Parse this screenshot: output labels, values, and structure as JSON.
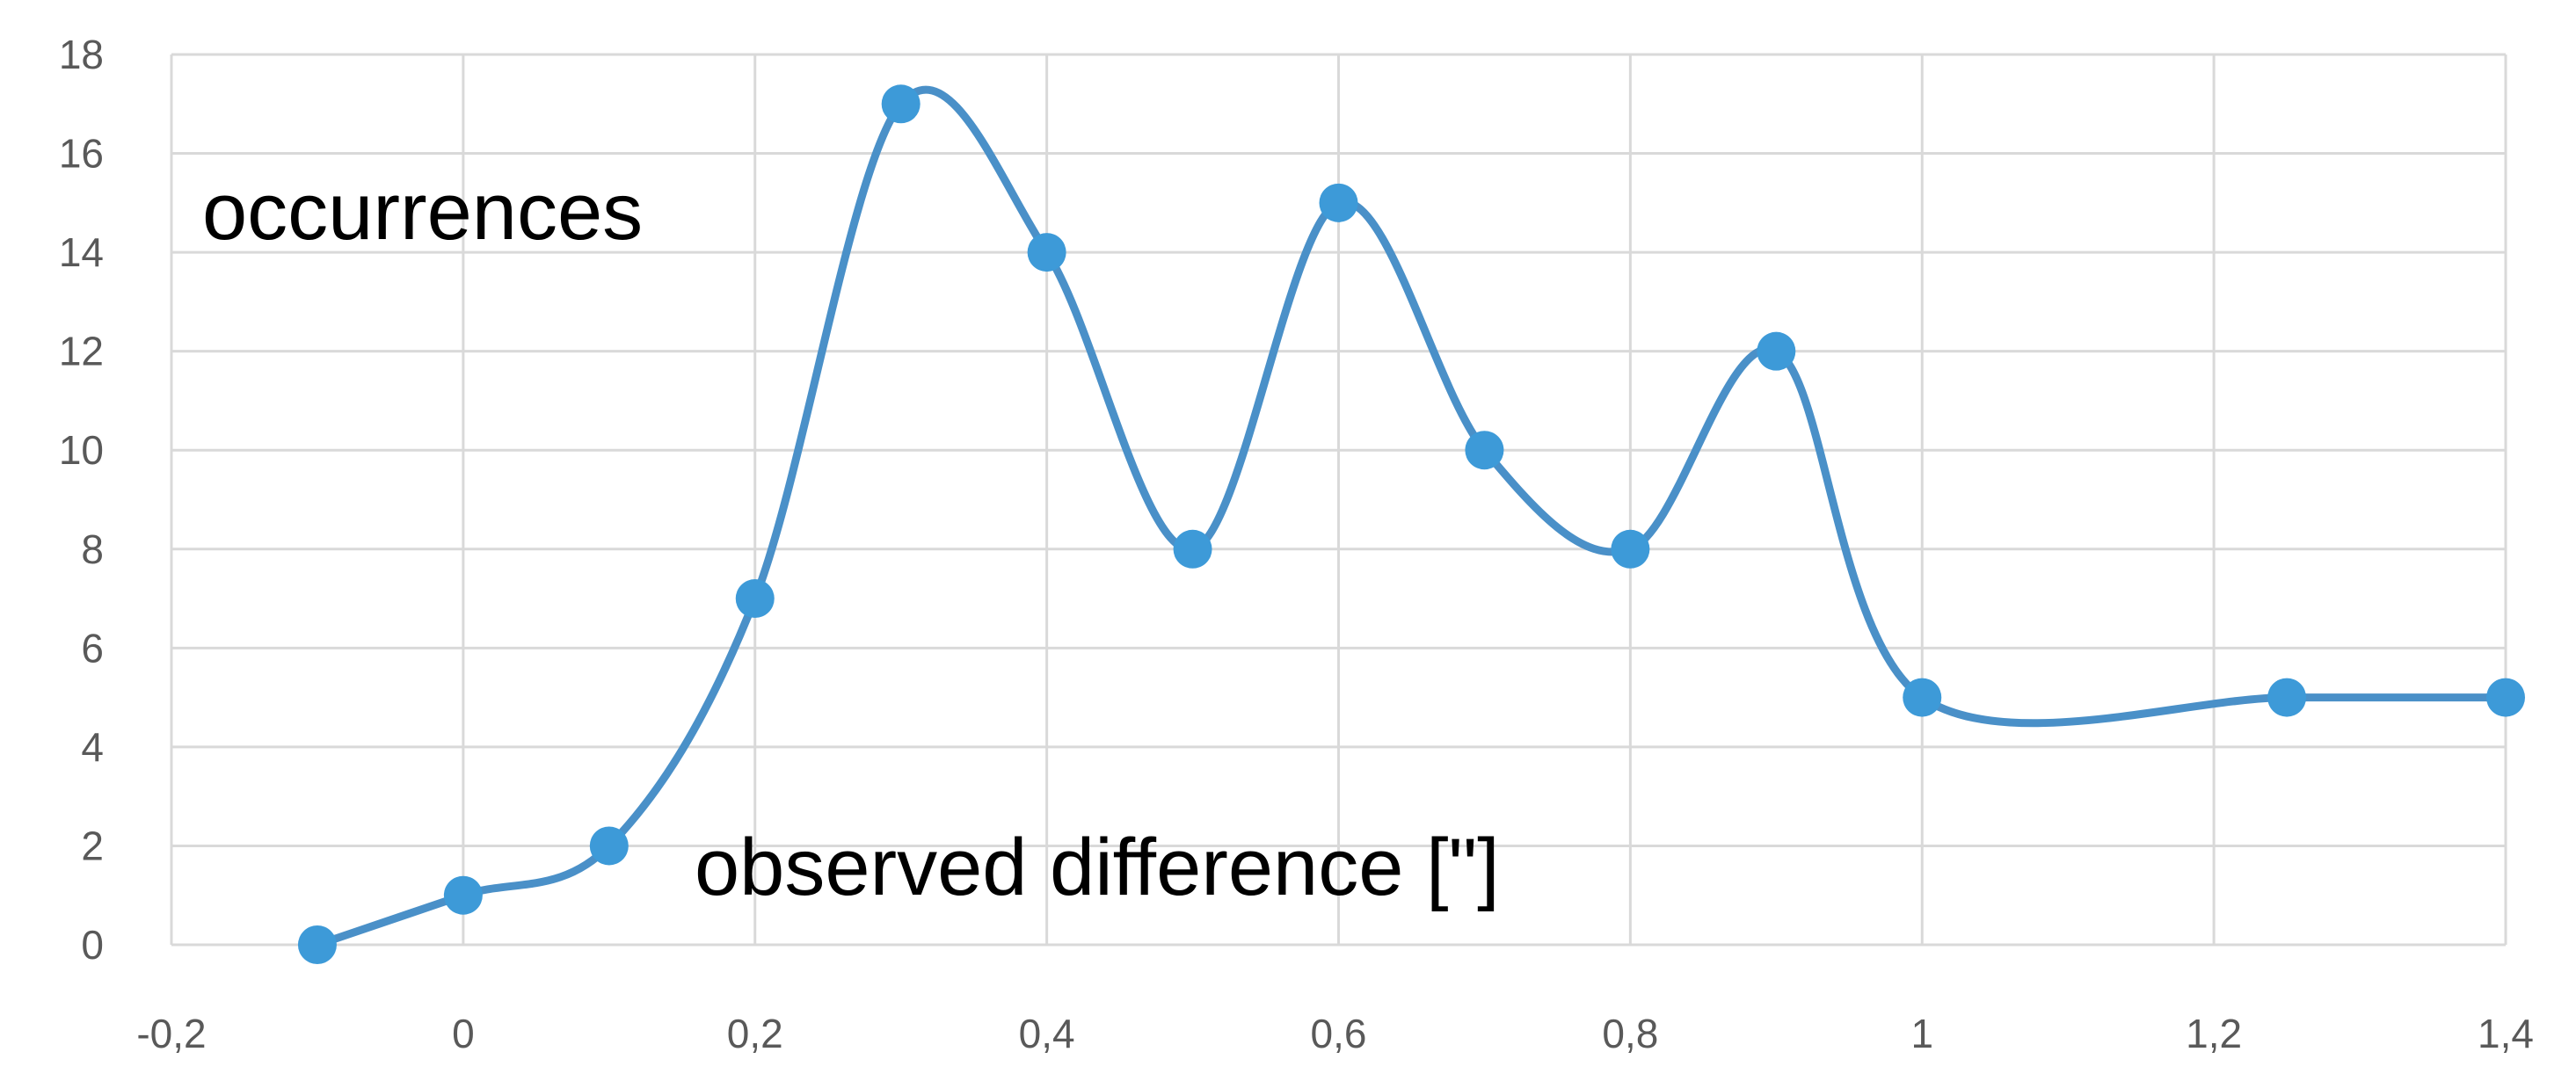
{
  "chart_data": {
    "type": "line",
    "smooth": true,
    "x": [
      -0.1,
      0,
      0.1,
      0.2,
      0.3,
      0.4,
      0.5,
      0.6,
      0.7,
      0.8,
      0.9,
      1.0,
      1.25,
      1.4
    ],
    "series": [
      {
        "values": [
          0,
          1,
          2,
          7,
          17,
          14,
          8,
          15,
          10,
          8,
          12,
          5,
          5,
          5
        ]
      }
    ],
    "xlim": [
      -0.2,
      1.4
    ],
    "ylim": [
      0,
      18
    ],
    "x_ticks": [
      "-0,2",
      "0",
      "0,2",
      "0,4",
      "0,6",
      "0,8",
      "1",
      "1,2",
      "1,4"
    ],
    "y_ticks": [
      "0",
      "2",
      "4",
      "6",
      "8",
      "10",
      "12",
      "14",
      "16",
      "18"
    ],
    "annotations": [
      "occurrences",
      "observed difference [\"]"
    ],
    "grid": true,
    "legend": "none",
    "colors": {
      "line": "#4a90c8",
      "marker": "#3d9ad8",
      "grid": "#d9d9d9",
      "text": "#595959"
    }
  }
}
